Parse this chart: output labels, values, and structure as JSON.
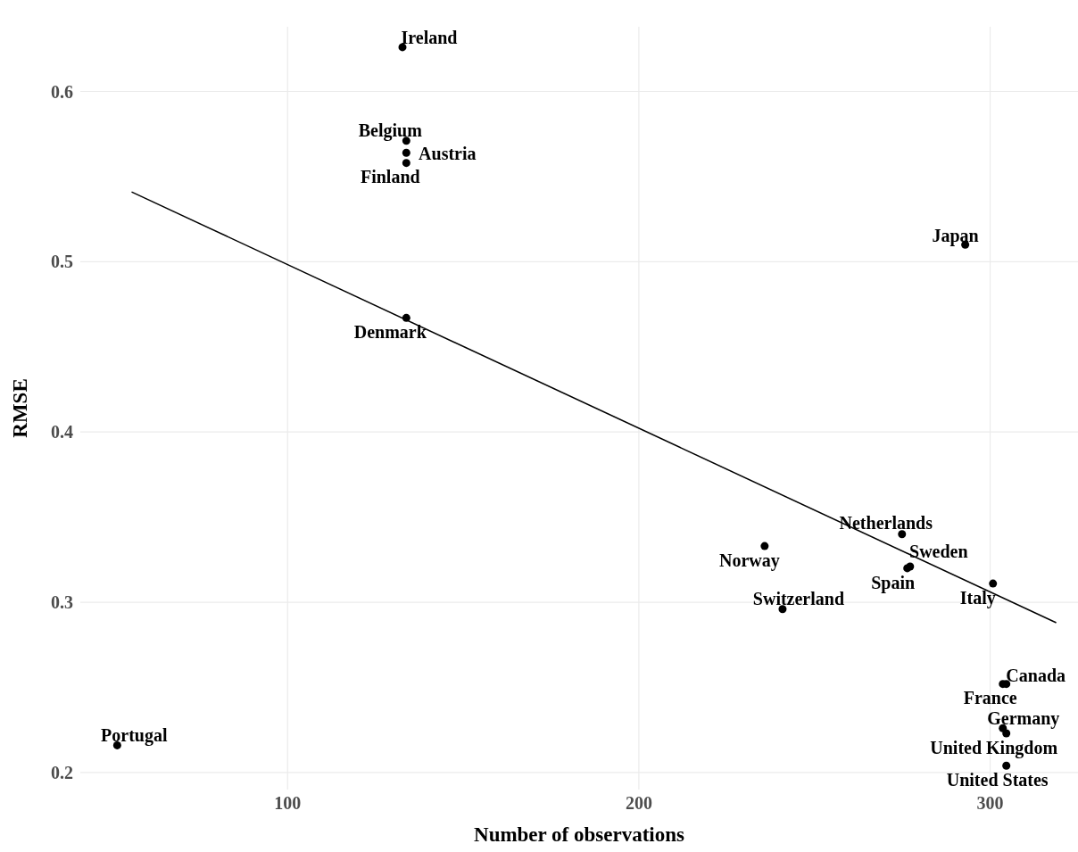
{
  "chart_data": {
    "type": "scatter",
    "xlabel": "Number of observations",
    "ylabel": "RMSE",
    "xlim": [
      41,
      325
    ],
    "ylim": [
      0.19,
      0.638
    ],
    "xticks": [
      100,
      200,
      300
    ],
    "yticks": [
      0.2,
      0.3,
      0.4,
      0.5,
      0.6
    ],
    "grid": true,
    "series": [
      {
        "marker": "circle",
        "color": "#000000",
        "x": [
          132.7,
          133.8,
          133.8,
          133.8,
          133.8,
          292.9,
          274.9,
          235.8,
          277.2,
          276.4,
          300.8,
          240.9,
          304.6,
          303.6,
          303.6,
          304.6,
          304.6,
          51.5
        ],
        "values": [
          0.626,
          0.571,
          0.564,
          0.558,
          0.467,
          0.51,
          0.34,
          0.333,
          0.321,
          0.32,
          0.311,
          0.296,
          0.252,
          0.252,
          0.226,
          0.223,
          0.204,
          0.216
        ],
        "value_labels": [
          "Ireland",
          "Belgium",
          "Austria",
          "Finland",
          "Denmark",
          "Japan",
          "Netherlands",
          "Norway",
          "Sweden",
          "Spain",
          "Italy",
          "Switzerland",
          "Canada",
          "France",
          "Germany",
          "United Kingdom",
          "United States",
          "Portugal"
        ]
      },
      {
        "type": "line",
        "color": "#000000",
        "x": [
          55.6,
          318.8
        ],
        "values": [
          0.541,
          0.288
        ]
      }
    ]
  }
}
